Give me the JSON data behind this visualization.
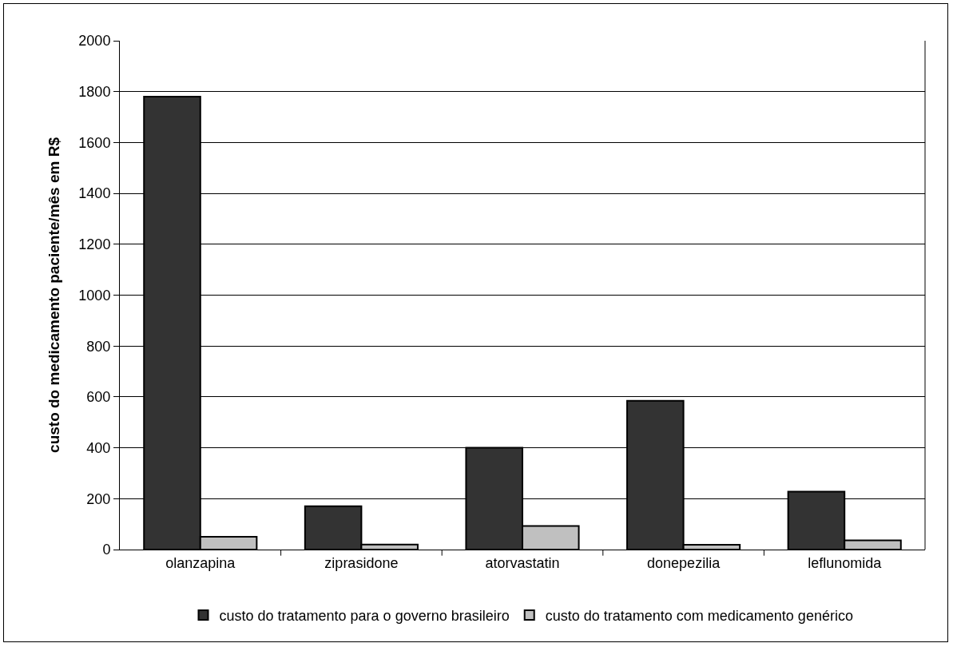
{
  "chart_data": {
    "type": "bar",
    "ylabel": "custo do medicamento paciente/mês em R$",
    "categories": [
      "olanzapina",
      "ziprasidone",
      "atorvastatin",
      "donepezilia",
      "leflunomida"
    ],
    "series": [
      {
        "name": "custo do tratamento para o governo brasileiro",
        "color": "#333333",
        "values": [
          1780,
          170,
          400,
          585,
          228
        ]
      },
      {
        "name": "custo do tratamento com medicamento genérico",
        "color": "#c0c0c0",
        "values": [
          50,
          20,
          93,
          19,
          36
        ]
      }
    ],
    "ylim": [
      0,
      2000
    ],
    "yticks": [
      0,
      200,
      400,
      600,
      800,
      1000,
      1200,
      1400,
      1600,
      1800,
      2000
    ],
    "grid": "y",
    "legend": "bottom"
  }
}
